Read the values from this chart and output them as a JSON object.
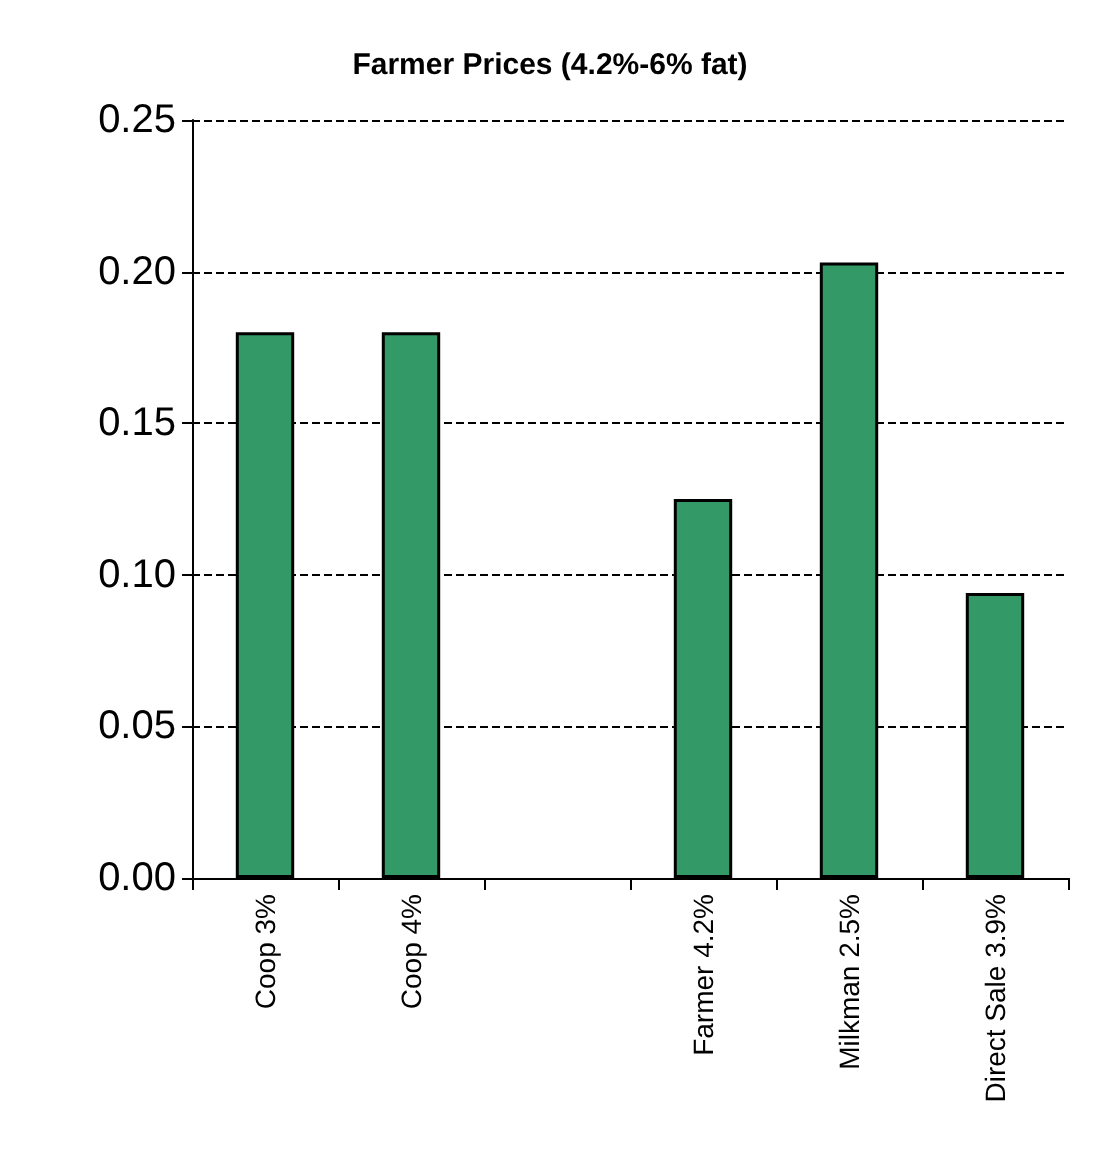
{
  "chart_data": {
    "type": "bar",
    "title": "Farmer Prices (4.2%-6% fat)",
    "categories": [
      "Coop 3%",
      "Coop 4%",
      null,
      "Farmer 4.2%",
      "Milkman 2.5%",
      "Direct Sale 3.9%"
    ],
    "values": [
      0.18,
      0.18,
      null,
      0.125,
      0.203,
      0.094
    ],
    "color": "#339966",
    "ylim": [
      0,
      0.25
    ],
    "yticks": [
      {
        "value": 0,
        "label": "0.00"
      },
      {
        "value": 0.05,
        "label": "0.05"
      },
      {
        "value": 0.1,
        "label": "0.10"
      },
      {
        "value": 0.15,
        "label": "0.15"
      },
      {
        "value": 0.2,
        "label": "0.20"
      },
      {
        "value": 0.25,
        "label": "0.25"
      }
    ],
    "grid": "y"
  }
}
